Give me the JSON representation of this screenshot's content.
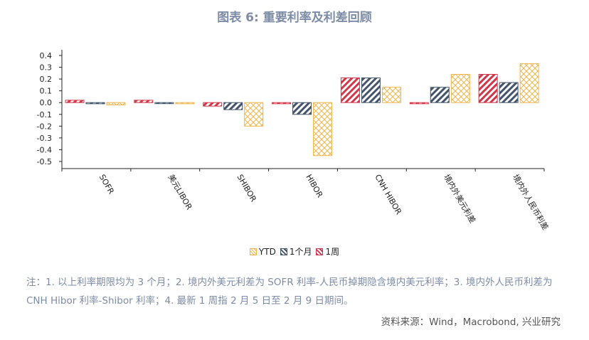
{
  "title": "图表 6: 重要利率及利差回顾",
  "chart_data": {
    "type": "bar",
    "categories": [
      "SOFR",
      "美元LIBOR",
      "SHIBOR",
      "HIBOR",
      "CNH HIBOR",
      "境内外美元利差",
      "境内外人民币利差"
    ],
    "series": [
      {
        "name": "YTD",
        "color": "#f0b44c",
        "pattern": "crosshatch",
        "values": [
          -0.02,
          -0.01,
          -0.2,
          -0.45,
          0.13,
          0.24,
          0.33
        ]
      },
      {
        "name": "1个月",
        "color": "#44546a",
        "pattern": "diagonal",
        "values": [
          -0.01,
          0.0,
          -0.06,
          -0.1,
          0.21,
          0.13,
          0.17
        ]
      },
      {
        "name": "1周",
        "color": "#d1374a",
        "pattern": "diagonal",
        "values": [
          0.02,
          0.02,
          -0.03,
          -0.01,
          0.21,
          -0.01,
          0.24
        ]
      }
    ],
    "bar_order": [
      "1周",
      "1个月",
      "YTD"
    ],
    "yticks": [
      "0.4",
      "0.3",
      "0.2",
      "0.1",
      "0.0",
      "-0.1",
      "-0.2",
      "-0.3",
      "-0.4",
      "-0.5"
    ],
    "ylim": [
      -0.55,
      0.45
    ],
    "legend_position": "bottom"
  },
  "notes": "注：1. 以上利率期限均为 3 个月；2. 境内外美元利差为 SOFR 利率-人民币掉期隐含境内美元利率；3. 境内外人民币利差为 CNH Hibor 利率-Shibor 利率；4. 最新 1 周指 2 月 5 日至 2 月 9 日期间。",
  "source": "资料来源：Wind，Macrobond, 兴业研究"
}
